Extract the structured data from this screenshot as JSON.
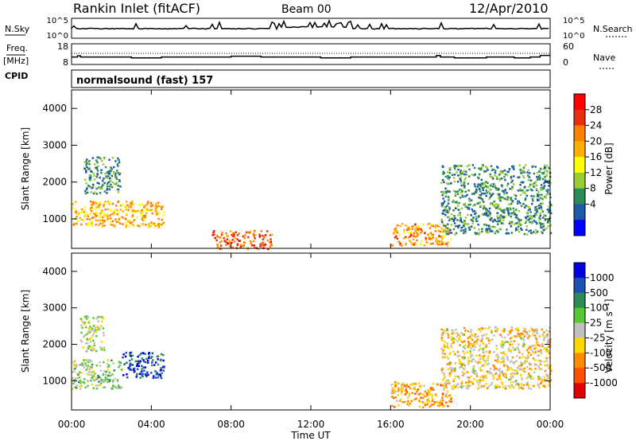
{
  "header": {
    "title": "Rankin Inlet (fitACF)",
    "beam": "Beam 00",
    "date": "12/Apr/2010"
  },
  "top_left": {
    "nsky": "N.Sky",
    "freq": "Freq.",
    "freq_unit": "[MHz]",
    "cpid": "CPID"
  },
  "top_right": {
    "nsearch": "N.Search",
    "nave": "Nave"
  },
  "axis_ticks": {
    "sky_left": [
      "10^5",
      "10^0"
    ],
    "sky_right": [
      "10^5",
      "10^0"
    ],
    "freq_left": [
      "18",
      "8"
    ],
    "nave_right": [
      "60",
      "0"
    ]
  },
  "cpid_text": "normalsound (fast) 157",
  "x_ticks": [
    "00:00",
    "04:00",
    "08:00",
    "12:00",
    "16:00",
    "20:00",
    "00:00"
  ],
  "x_label": "Time UT",
  "y_label": "Slant Range [km]",
  "y_ticks": [
    "4000",
    "3000",
    "2000",
    "1000"
  ],
  "power_bar": {
    "label": "Power [dB]",
    "ticks": [
      "28",
      "24",
      "20",
      "16",
      "12",
      "8",
      "4"
    ],
    "colors": [
      "#ff0000",
      "#e83010",
      "#ff7f00",
      "#ffb000",
      "#ffff00",
      "#9acd32",
      "#2e8b57",
      "#1e5aa8",
      "#0000ff"
    ]
  },
  "velocity_bar": {
    "label": "Velocity [m s⁻¹]",
    "ticks": [
      "1000",
      "500",
      "100",
      "25",
      "-25",
      "-100",
      "-500",
      "-1000"
    ],
    "colors": [
      "#0000e0",
      "#1e50b4",
      "#2e8b57",
      "#55c832",
      "#c0c0c0",
      "#ffd700",
      "#ff8c00",
      "#ff5000",
      "#e00000"
    ]
  },
  "chart_data": [
    {
      "type": "line",
      "title": "N.Sky",
      "x_range": [
        "00:00",
        "24:00"
      ],
      "ylim": [
        "10^0",
        "10^5"
      ],
      "scale": "log",
      "summary_level_note": "N.Sky trace stays near the middle of its panel, rising around 11:00-14:00"
    },
    {
      "type": "line",
      "title": "Freq. [MHz] / Nave",
      "ylim_left": [
        8,
        18
      ],
      "ylim_right": [
        0,
        60
      ],
      "frequency_mhz_approx": 11.5
    },
    {
      "type": "heatmap",
      "title": "Power [dB]",
      "x": "Time UT (hours)",
      "y": "Slant Range [km]",
      "xlim": [
        0,
        24
      ],
      "ylim": [
        200,
        4500
      ],
      "clim": [
        0,
        32
      ],
      "echo_regions": [
        {
          "t": [
            0.0,
            4.6
          ],
          "range": [
            800,
            1500
          ],
          "value": 20
        },
        {
          "t": [
            0.6,
            2.4
          ],
          "range": [
            1700,
            2700
          ],
          "value": 8
        },
        {
          "t": [
            7.0,
            10.0
          ],
          "range": [
            200,
            700
          ],
          "value": 26
        },
        {
          "t": [
            16.0,
            19.0
          ],
          "range": [
            300,
            900
          ],
          "value": 22
        },
        {
          "t": [
            18.5,
            24.0
          ],
          "range": [
            600,
            2500
          ],
          "value": 8
        }
      ]
    },
    {
      "type": "heatmap",
      "title": "Velocity [m s^-1]",
      "x": "Time UT (hours)",
      "y": "Slant Range [km]",
      "xlim": [
        0,
        24
      ],
      "ylim": [
        200,
        4500
      ],
      "clim": [
        -1000,
        1000
      ],
      "echo_regions": [
        {
          "t": [
            0.0,
            2.5
          ],
          "range": [
            800,
            1600
          ],
          "value": 100
        },
        {
          "t": [
            0.4,
            1.6
          ],
          "range": [
            1800,
            2800
          ],
          "value": 25
        },
        {
          "t": [
            2.5,
            4.6
          ],
          "range": [
            1100,
            1800
          ],
          "value": 800
        },
        {
          "t": [
            16.0,
            19.0
          ],
          "range": [
            300,
            1000
          ],
          "value": -400
        },
        {
          "t": [
            18.5,
            24.0
          ],
          "range": [
            800,
            2500
          ],
          "value": -200
        }
      ]
    }
  ]
}
